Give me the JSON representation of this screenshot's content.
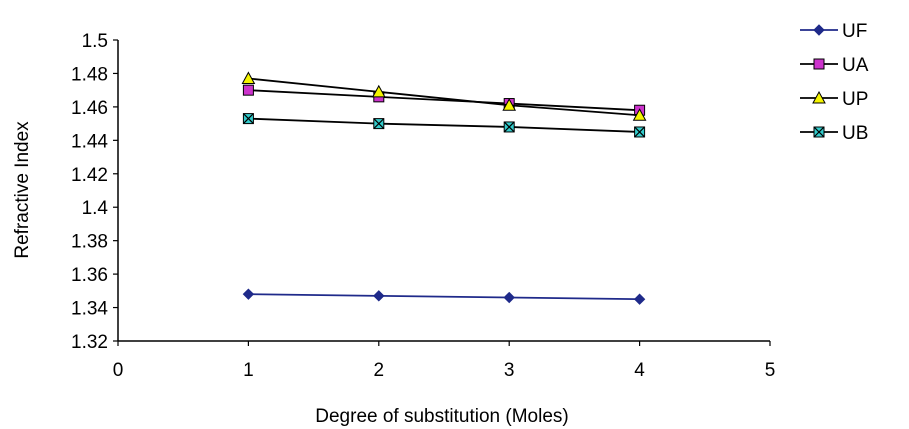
{
  "chart_data": {
    "type": "line",
    "xlabel": "Degree of substitution (Moles)",
    "ylabel": "Refractive Index",
    "xlim": [
      0,
      5
    ],
    "ylim": [
      1.32,
      1.5
    ],
    "x_ticks": [
      "0",
      "1",
      "2",
      "3",
      "4",
      "5"
    ],
    "y_ticks": [
      "1.32",
      "1.34",
      "1.36",
      "1.38",
      "1.4",
      "1.42",
      "1.44",
      "1.46",
      "1.48",
      "1.5"
    ],
    "grid": false,
    "legend_position": "right",
    "x": [
      1,
      2,
      3,
      4
    ],
    "series": [
      {
        "name": "UF",
        "values": [
          1.348,
          1.347,
          1.346,
          1.345
        ],
        "color": "#1f2a8a",
        "marker": "diamond",
        "marker_color": "#1f2a8a"
      },
      {
        "name": "UA",
        "values": [
          1.47,
          1.466,
          1.462,
          1.458
        ],
        "color": "#000000",
        "marker": "square",
        "marker_color": "#cc33cc"
      },
      {
        "name": "UP",
        "values": [
          1.477,
          1.469,
          1.461,
          1.455
        ],
        "color": "#000000",
        "marker": "triangle",
        "marker_color": "#f5f500"
      },
      {
        "name": "UB",
        "values": [
          1.453,
          1.45,
          1.448,
          1.445
        ],
        "color": "#000000",
        "marker": "x-square",
        "marker_color": "#33cccc"
      }
    ]
  }
}
